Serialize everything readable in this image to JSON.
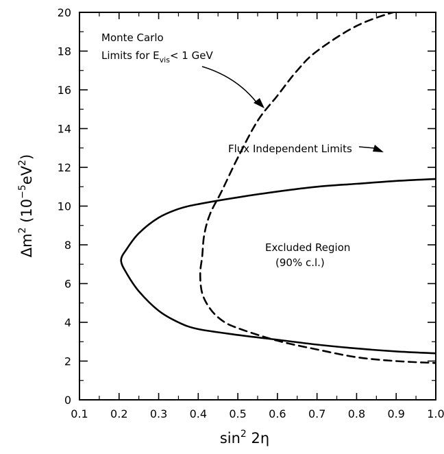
{
  "chart_data": {
    "type": "line",
    "xlabel": {
      "base": "sin",
      "sup": "2",
      "rest": " 2η"
    },
    "ylabel": {
      "pre": "Δm",
      "sup1": "2",
      "mid": "  (10",
      "sup2": "−5",
      "post": "eV",
      "sup3": "2",
      "end": ")"
    },
    "xlim": [
      0.1,
      1.0
    ],
    "ylim": [
      0,
      20
    ],
    "x_ticks": [
      "0.1",
      "0.2",
      "0.3",
      "0.4",
      "0.5",
      "0.6",
      "0.7",
      "0.8",
      "0.9",
      "1.0"
    ],
    "y_ticks": [
      "0",
      "2",
      "4",
      "6",
      "8",
      "10",
      "12",
      "14",
      "16",
      "18",
      "20"
    ],
    "grid": false,
    "series": [
      {
        "name": "Flux Independent Limits",
        "style": "solid",
        "points": [
          [
            1.0,
            11.4
          ],
          [
            0.9,
            11.3
          ],
          [
            0.8,
            11.15
          ],
          [
            0.7,
            11.0
          ],
          [
            0.6,
            10.75
          ],
          [
            0.5,
            10.45
          ],
          [
            0.4,
            10.1
          ],
          [
            0.35,
            9.85
          ],
          [
            0.3,
            9.4
          ],
          [
            0.25,
            8.6
          ],
          [
            0.22,
            7.8
          ],
          [
            0.205,
            7.2
          ],
          [
            0.22,
            6.5
          ],
          [
            0.25,
            5.6
          ],
          [
            0.3,
            4.6
          ],
          [
            0.35,
            4.0
          ],
          [
            0.4,
            3.65
          ],
          [
            0.5,
            3.35
          ],
          [
            0.6,
            3.1
          ],
          [
            0.7,
            2.85
          ],
          [
            0.8,
            2.65
          ],
          [
            0.9,
            2.5
          ],
          [
            1.0,
            2.4
          ]
        ]
      },
      {
        "name": "Monte Carlo Limits for E_vis < 1 GeV",
        "style": "dashed",
        "points": [
          [
            0.96,
            20.3
          ],
          [
            0.9,
            20.05
          ],
          [
            0.8,
            19.3
          ],
          [
            0.7,
            18.0
          ],
          [
            0.65,
            17.0
          ],
          [
            0.6,
            15.7
          ],
          [
            0.55,
            14.4
          ],
          [
            0.5,
            12.5
          ],
          [
            0.46,
            10.8
          ],
          [
            0.43,
            9.6
          ],
          [
            0.415,
            8.5
          ],
          [
            0.41,
            7.4
          ],
          [
            0.405,
            6.5
          ],
          [
            0.41,
            5.5
          ],
          [
            0.43,
            4.7
          ],
          [
            0.46,
            4.1
          ],
          [
            0.5,
            3.7
          ],
          [
            0.6,
            3.05
          ],
          [
            0.7,
            2.6
          ],
          [
            0.8,
            2.2
          ],
          [
            0.9,
            2.0
          ],
          [
            1.0,
            1.9
          ]
        ]
      }
    ],
    "annotations": {
      "monte_carlo_line1": "Monte Carlo",
      "monte_carlo_line2_pre": "Limits for E",
      "monte_carlo_sub": "vis",
      "monte_carlo_line2_post": "< 1 GeV",
      "flux": "Flux Independent Limits",
      "excluded_line1": "Excluded Region",
      "excluded_line2": "(90% c.l.)"
    }
  }
}
